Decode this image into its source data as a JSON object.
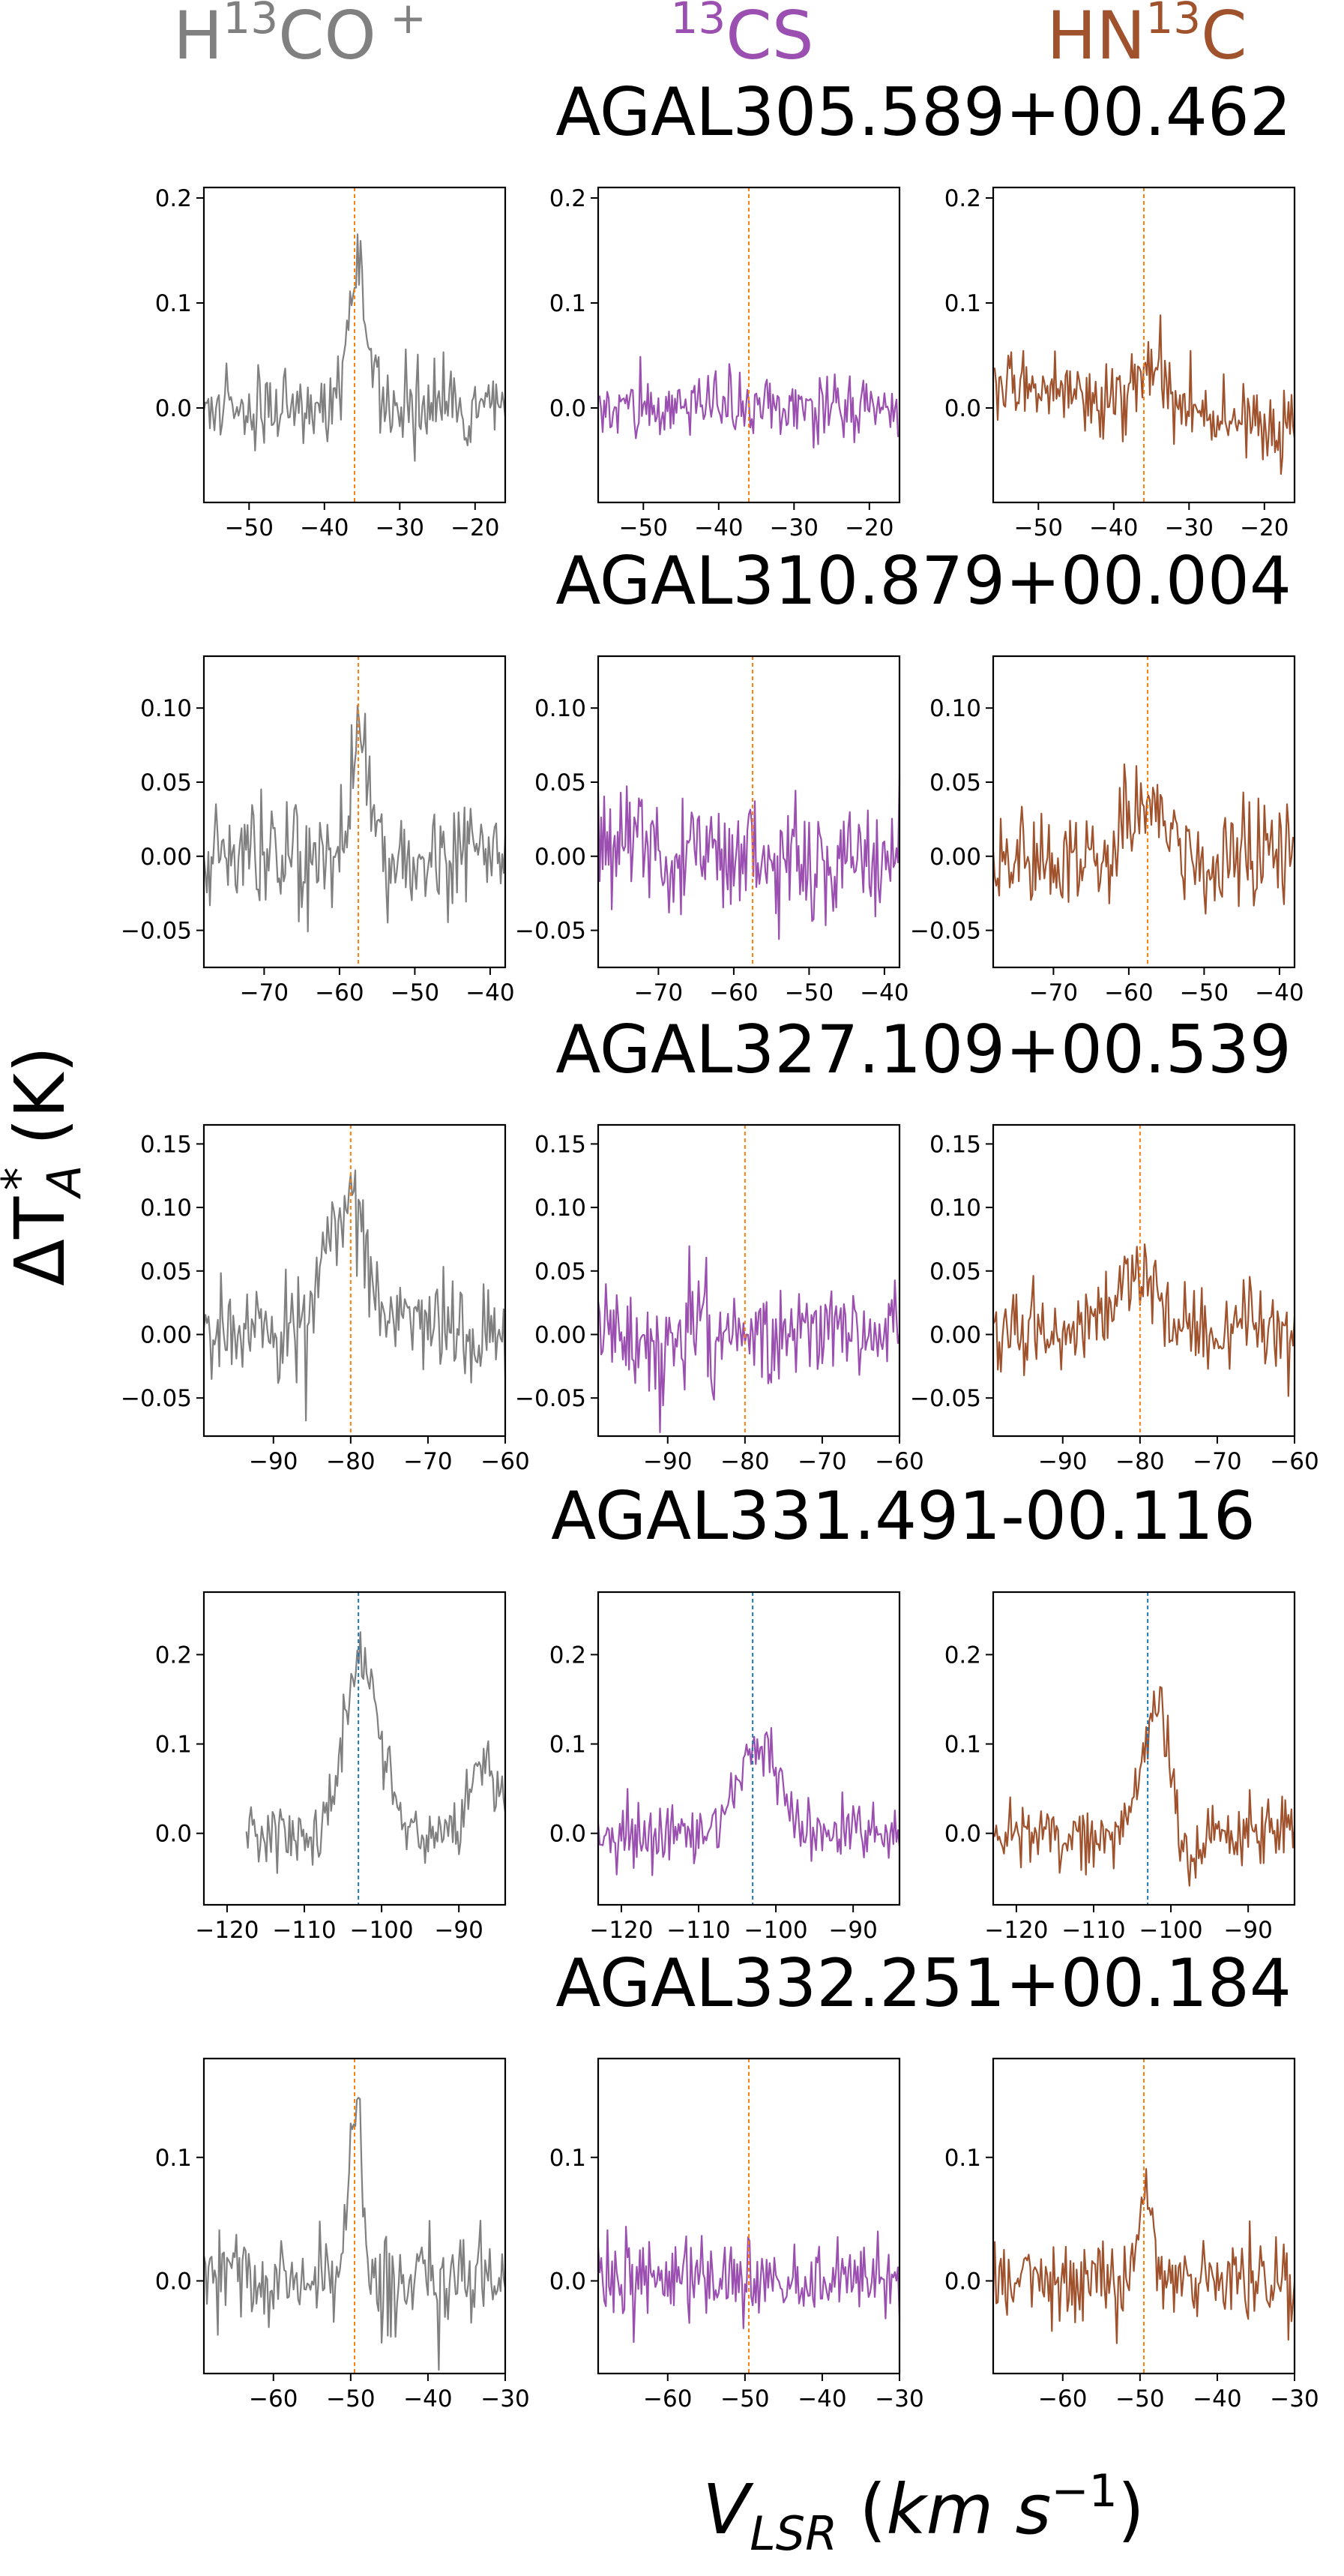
{
  "figure": {
    "ylabel": "ΔT_A^* (K)",
    "xlabel": "V_LSR (km s^-1)"
  },
  "columns": [
    {
      "label": "H13CO+",
      "color": "#808080"
    },
    {
      "label": "13CS",
      "color": "#9b4fb0"
    },
    {
      "label": "HN13C",
      "color": "#a0522d"
    }
  ],
  "line_colors": {
    "orange": "#ff7f0e",
    "blue": "#1f77b4"
  },
  "chart_data": [
    {
      "type": "line",
      "title": "AGAL305.589+00.462",
      "vlsr_marker": -36,
      "marker_color": "orange",
      "xlim": [
        -56,
        -16
      ],
      "xticks": [
        -50,
        -40,
        -30,
        -20
      ],
      "ylim": [
        -0.09,
        0.21
      ],
      "yticks": [
        0.0,
        0.1,
        0.2
      ],
      "ytick_labels": [
        "0.0",
        "0.1",
        "0.2"
      ],
      "series": [
        {
          "molecule": "H13CO+",
          "noise": 0.018,
          "lines": [
            {
              "amp": 0.13,
              "center": -35.5,
              "width": 1.2
            }
          ],
          "seed": 11
        },
        {
          "molecule": "13CS",
          "noise": 0.016,
          "lines": [],
          "seed": 12
        },
        {
          "molecule": "HN13C",
          "noise": 0.017,
          "lines": [
            {
              "amp": 0.04,
              "center": -35,
              "width": 2.0
            }
          ],
          "slope": -0.0012,
          "seed": 13
        }
      ]
    },
    {
      "type": "line",
      "title": "AGAL310.879+00.004",
      "vlsr_marker": -57.5,
      "marker_color": "orange",
      "xlim": [
        -78,
        -38
      ],
      "xticks": [
        -70,
        -60,
        -50,
        -40
      ],
      "ylim": [
        -0.075,
        0.135
      ],
      "yticks": [
        -0.05,
        0.0,
        0.05,
        0.1
      ],
      "ytick_labels": [
        "−0.05",
        "0.00",
        "0.05",
        "0.10"
      ],
      "series": [
        {
          "molecule": "H13CO+",
          "noise": 0.018,
          "lines": [
            {
              "amp": 0.085,
              "center": -57.3,
              "width": 1.1
            }
          ],
          "seed": 21
        },
        {
          "molecule": "13CS",
          "noise": 0.021,
          "lines": [],
          "seed": 22
        },
        {
          "molecule": "HN13C",
          "noise": 0.018,
          "lines": [
            {
              "amp": 0.045,
              "center": -57.5,
              "width": 2.2
            }
          ],
          "seed": 23
        }
      ]
    },
    {
      "type": "line",
      "title": "AGAL327.109+00.539",
      "vlsr_marker": -80,
      "marker_color": "orange",
      "xlim": [
        -99,
        -60
      ],
      "xticks": [
        -90,
        -80,
        -70,
        -60
      ],
      "ylim": [
        -0.08,
        0.165
      ],
      "yticks": [
        -0.05,
        0.0,
        0.05,
        0.1,
        0.15
      ],
      "ytick_labels": [
        "−0.05",
        "0.00",
        "0.05",
        "0.10",
        "0.15"
      ],
      "series": [
        {
          "molecule": "H13CO+",
          "noise": 0.02,
          "lines": [
            {
              "amp": 0.11,
              "center": -80.5,
              "width": 2.6
            }
          ],
          "seed": 31
        },
        {
          "molecule": "13CS",
          "noise": 0.021,
          "lines": [],
          "seed": 32
        },
        {
          "molecule": "HN13C",
          "noise": 0.018,
          "lines": [
            {
              "amp": 0.045,
              "center": -80.5,
              "width": 3.0
            }
          ],
          "seed": 33
        }
      ]
    },
    {
      "type": "line",
      "title": "AGAL331.491-00.116",
      "vlsr_marker": -103,
      "marker_color": "blue",
      "xlim": [
        -123,
        -84
      ],
      "xticks": [
        -120,
        -110,
        -100,
        -90
      ],
      "ylim": [
        -0.08,
        0.27
      ],
      "yticks": [
        0.0,
        0.1,
        0.2
      ],
      "ytick_labels": [
        "0.0",
        "0.1",
        "0.2"
      ],
      "series": [
        {
          "molecule": "H13CO+",
          "noise": 0.02,
          "xmin": -117.5,
          "lines": [
            {
              "amp": 0.2,
              "center": -102.5,
              "width": 2.3
            },
            {
              "amp": 0.085,
              "center": -87,
              "width": 1.8
            }
          ],
          "seed": 41
        },
        {
          "molecule": "13CS",
          "noise": 0.019,
          "lines": [
            {
              "amp": 0.1,
              "center": -102.5,
              "width": 2.5
            }
          ],
          "seed": 42
        },
        {
          "molecule": "HN13C",
          "noise": 0.018,
          "lines": [
            {
              "amp": 0.14,
              "center": -101.8,
              "width": 1.6
            },
            {
              "amp": -0.04,
              "center": -98,
              "width": 1.2
            }
          ],
          "seed": 43
        }
      ]
    },
    {
      "type": "line",
      "title": "AGAL332.251+00.184",
      "vlsr_marker": -49.5,
      "marker_color": "orange",
      "xlim": [
        -69,
        -30
      ],
      "xticks": [
        -60,
        -50,
        -40,
        -30
      ],
      "ylim": [
        -0.075,
        0.18
      ],
      "yticks": [
        0.0,
        0.1
      ],
      "ytick_labels": [
        "0.0",
        "0.1"
      ],
      "series": [
        {
          "molecule": "H13CO+",
          "noise": 0.019,
          "lines": [
            {
              "amp": 0.14,
              "center": -49.5,
              "width": 0.9
            }
          ],
          "seed": 51
        },
        {
          "molecule": "13CS",
          "noise": 0.017,
          "lines": [],
          "seed": 52
        },
        {
          "molecule": "HN13C",
          "noise": 0.016,
          "lines": [
            {
              "amp": 0.085,
              "center": -49.3,
              "width": 0.9
            }
          ],
          "seed": 53
        }
      ]
    }
  ]
}
